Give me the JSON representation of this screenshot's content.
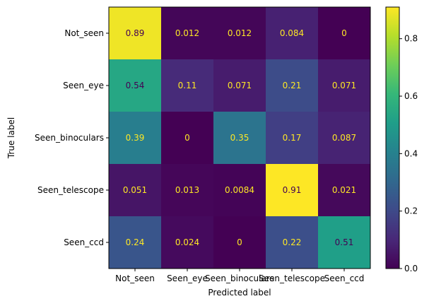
{
  "chart_data": {
    "type": "heatmap",
    "title": "",
    "xlabel": "Predicted label",
    "ylabel": "True label",
    "x_categories": [
      "Not_seen",
      "Seen_eye",
      "Seen_binoculars",
      "Seen_telescope",
      "Seen_ccd"
    ],
    "y_categories": [
      "Not_seen",
      "Seen_eye",
      "Seen_binoculars",
      "Seen_telescope",
      "Seen_ccd"
    ],
    "values": [
      [
        0.89,
        0.012,
        0.012,
        0.084,
        0
      ],
      [
        0.54,
        0.11,
        0.071,
        0.21,
        0.071
      ],
      [
        0.39,
        0,
        0.35,
        0.17,
        0.087
      ],
      [
        0.051,
        0.013,
        0.0084,
        0.91,
        0.021
      ],
      [
        0.24,
        0.024,
        0,
        0.22,
        0.51
      ]
    ],
    "cell_labels": [
      [
        "0.89",
        "0.012",
        "0.012",
        "0.084",
        "0"
      ],
      [
        "0.54",
        "0.11",
        "0.071",
        "0.21",
        "0.071"
      ],
      [
        "0.39",
        "0",
        "0.35",
        "0.17",
        "0.087"
      ],
      [
        "0.051",
        "0.013",
        "0.0084",
        "0.91",
        "0.021"
      ],
      [
        "0.24",
        "0.024",
        "0",
        "0.22",
        "0.51"
      ]
    ],
    "colormap": "viridis",
    "color_range": [
      0,
      0.91
    ],
    "colorbar": {
      "ticks": [
        0.0,
        0.2,
        0.4,
        0.6,
        0.8
      ],
      "tick_labels": [
        "0.0",
        "0.2",
        "0.4",
        "0.6",
        "0.8"
      ]
    },
    "grid": false,
    "text_colors": {
      "on_dark": "#fde725",
      "on_light": "#440154"
    }
  }
}
